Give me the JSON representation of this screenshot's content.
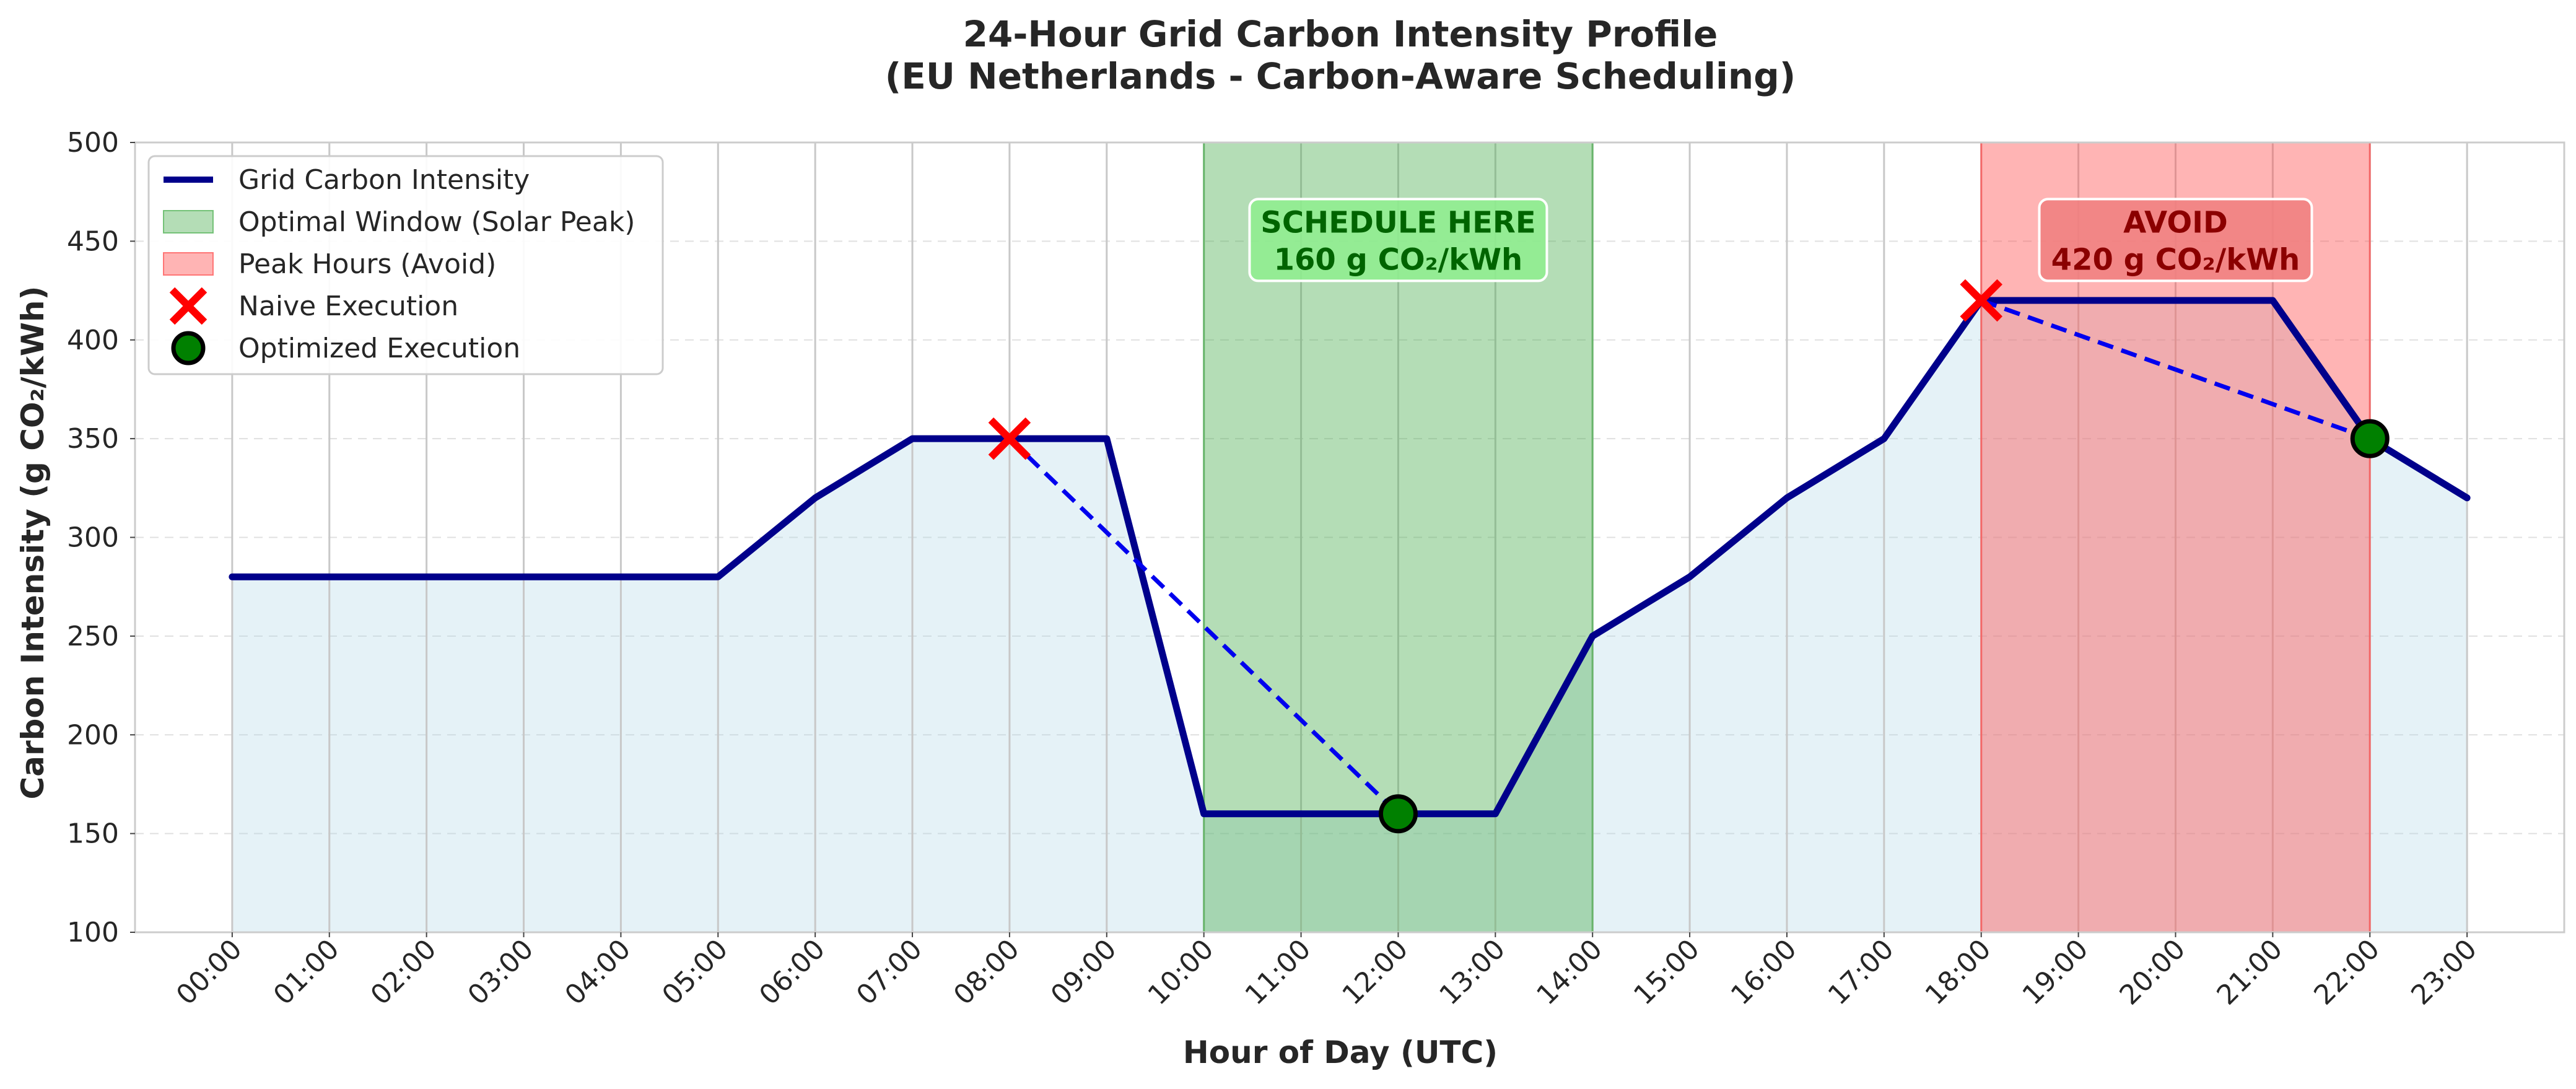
{
  "chart_data": {
    "type": "line",
    "title": "24-Hour Grid Carbon Intensity Profile",
    "subtitle": "(EU Netherlands - Carbon-Aware Scheduling)",
    "xlabel": "Hour of Day (UTC)",
    "ylabel": "Carbon Intensity (g CO₂/kWh)",
    "categories": [
      "00:00",
      "01:00",
      "02:00",
      "03:00",
      "04:00",
      "05:00",
      "06:00",
      "07:00",
      "08:00",
      "09:00",
      "10:00",
      "11:00",
      "12:00",
      "13:00",
      "14:00",
      "15:00",
      "16:00",
      "17:00",
      "18:00",
      "19:00",
      "20:00",
      "21:00",
      "22:00",
      "23:00"
    ],
    "ylim": [
      100,
      500
    ],
    "yticks": [
      100,
      150,
      200,
      250,
      300,
      350,
      400,
      450,
      500
    ],
    "grid": true,
    "legend_position": "top-left",
    "series": [
      {
        "name": "Grid Carbon Intensity",
        "color": "#00008b",
        "fill_color": "#add8e6",
        "x": [
          1,
          2,
          3,
          4,
          5,
          6,
          7,
          8,
          9,
          10,
          11,
          12,
          13,
          14,
          15,
          16,
          17,
          18,
          19,
          20,
          21,
          22,
          23,
          24
        ],
        "values": [
          280,
          280,
          280,
          280,
          280,
          280,
          320,
          350,
          350,
          350,
          160,
          160,
          160,
          160,
          250,
          280,
          320,
          350,
          420,
          420,
          420,
          420,
          350,
          320
        ]
      }
    ],
    "regions": [
      {
        "name": "Optimal Window (Solar Peak)",
        "x_start": 11,
        "x_end": 15,
        "color": "#4caf50"
      },
      {
        "name": "Peak Hours (Avoid)",
        "x_start": 19,
        "x_end": 23,
        "color": "#ff4d4d"
      }
    ],
    "markers": [
      {
        "name": "Naive Execution",
        "symbol": "x",
        "color": "#ff0000",
        "points": [
          {
            "x": 9,
            "y": 350
          },
          {
            "x": 19,
            "y": 420
          }
        ]
      },
      {
        "name": "Optimized Execution",
        "symbol": "circle",
        "color": "#008000",
        "points": [
          {
            "x": 13,
            "y": 160
          },
          {
            "x": 23,
            "y": 350
          }
        ]
      }
    ],
    "shift_arrows": [
      {
        "from": {
          "x": 9,
          "y": 350
        },
        "to": {
          "x": 13,
          "y": 160
        }
      },
      {
        "from": {
          "x": 19,
          "y": 420
        },
        "to": {
          "x": 23,
          "y": 350
        }
      }
    ],
    "annotations": [
      {
        "line1": "SCHEDULE HERE",
        "line2": "160 g CO₂/kWh",
        "x": 13,
        "y": 450,
        "box_color": "#90ee90",
        "text_color": "#006400"
      },
      {
        "line1": "AVOID",
        "line2": "420 g CO₂/kWh",
        "x": 21,
        "y": 450,
        "box_color": "#f08080",
        "text_color": "#8b0000"
      }
    ]
  }
}
